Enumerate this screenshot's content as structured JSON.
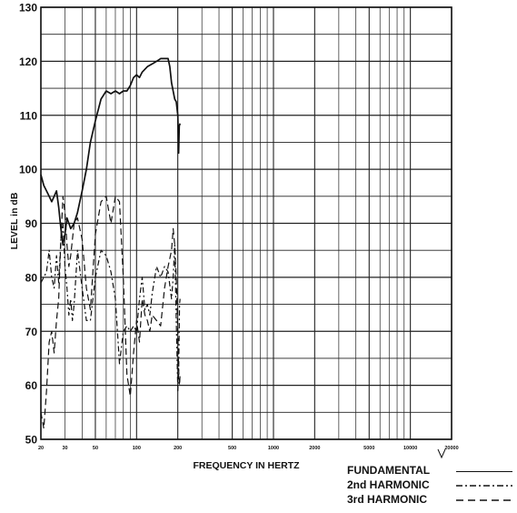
{
  "chart_data": {
    "type": "line",
    "xlabel": "FREQUENCY IN HERTZ",
    "ylabel": "LEVEL in dB",
    "xscale": "log",
    "xlim": [
      20,
      20000
    ],
    "ylim": [
      50,
      130
    ],
    "grid": true,
    "legend_position": "bottom-right",
    "y_ticks": [
      50,
      60,
      70,
      80,
      90,
      100,
      110,
      120,
      130
    ],
    "x_ticks": [
      {
        "value": 20,
        "label": "20"
      },
      {
        "value": 30,
        "label": "30"
      },
      {
        "value": 50,
        "label": "50"
      },
      {
        "value": 100,
        "label": "100"
      },
      {
        "value": 200,
        "label": "200"
      },
      {
        "value": 500,
        "label": "500"
      },
      {
        "value": 1000,
        "label": "1000"
      },
      {
        "value": 2000,
        "label": "2000"
      },
      {
        "value": 5000,
        "label": "5000"
      },
      {
        "value": 10000,
        "label": "10000"
      },
      {
        "value": 20000,
        "label": "20000"
      }
    ],
    "series": [
      {
        "name": "FUNDAMENTAL",
        "style": "solid",
        "points": [
          [
            20,
            99
          ],
          [
            21,
            97
          ],
          [
            22,
            96
          ],
          [
            23,
            95
          ],
          [
            24,
            94
          ],
          [
            25,
            95
          ],
          [
            26,
            96
          ],
          [
            27,
            93
          ],
          [
            28,
            89
          ],
          [
            29,
            86
          ],
          [
            30,
            88
          ],
          [
            31,
            91
          ],
          [
            32,
            90
          ],
          [
            33,
            89
          ],
          [
            35,
            90
          ],
          [
            37,
            92
          ],
          [
            40,
            96
          ],
          [
            43,
            100
          ],
          [
            46,
            105
          ],
          [
            50,
            109
          ],
          [
            55,
            113
          ],
          [
            60,
            114.5
          ],
          [
            65,
            114
          ],
          [
            70,
            114.5
          ],
          [
            75,
            114
          ],
          [
            80,
            114.5
          ],
          [
            85,
            114.5
          ],
          [
            90,
            115.5
          ],
          [
            95,
            117
          ],
          [
            100,
            117.5
          ],
          [
            105,
            117
          ],
          [
            110,
            118
          ],
          [
            120,
            119
          ],
          [
            130,
            119.5
          ],
          [
            140,
            120
          ],
          [
            150,
            120.5
          ],
          [
            160,
            120.5
          ],
          [
            170,
            120.5
          ],
          [
            175,
            119
          ],
          [
            180,
            116
          ],
          [
            190,
            113
          ],
          [
            195,
            112.5
          ],
          [
            200,
            110
          ],
          [
            203,
            103
          ],
          [
            205,
            108
          ],
          [
            208,
            108.5
          ]
        ]
      },
      {
        "name": "2nd HARMONIC",
        "style": "dash-dot",
        "points": [
          [
            20,
            79
          ],
          [
            21,
            80
          ],
          [
            22,
            81
          ],
          [
            23,
            85
          ],
          [
            24,
            80
          ],
          [
            25,
            78
          ],
          [
            26,
            84
          ],
          [
            27,
            79
          ],
          [
            28,
            87
          ],
          [
            29,
            90
          ],
          [
            30,
            82
          ],
          [
            31,
            78
          ],
          [
            32,
            73
          ],
          [
            33,
            76
          ],
          [
            34,
            72
          ],
          [
            35,
            75
          ],
          [
            37,
            85
          ],
          [
            40,
            78
          ],
          [
            43,
            72
          ],
          [
            46,
            72
          ],
          [
            50,
            80
          ],
          [
            55,
            85
          ],
          [
            60,
            84
          ],
          [
            65,
            81
          ],
          [
            70,
            76
          ],
          [
            75,
            64
          ],
          [
            80,
            70
          ],
          [
            85,
            71
          ],
          [
            90,
            70
          ],
          [
            95,
            71
          ],
          [
            100,
            70
          ],
          [
            105,
            76
          ],
          [
            110,
            80
          ],
          [
            115,
            74
          ],
          [
            120,
            75
          ],
          [
            125,
            73
          ],
          [
            130,
            77
          ],
          [
            140,
            82
          ],
          [
            150,
            80
          ],
          [
            160,
            82
          ],
          [
            170,
            81
          ],
          [
            180,
            76
          ],
          [
            185,
            80
          ],
          [
            190,
            86
          ],
          [
            195,
            72
          ],
          [
            200,
            59
          ],
          [
            203,
            62
          ],
          [
            206,
            75
          ],
          [
            208,
            76
          ]
        ]
      },
      {
        "name": "3rd HARMONIC",
        "style": "dashed",
        "points": [
          [
            20,
            55
          ],
          [
            21,
            52
          ],
          [
            22,
            59
          ],
          [
            23,
            68
          ],
          [
            24,
            70
          ],
          [
            25,
            66
          ],
          [
            26,
            72
          ],
          [
            27,
            76
          ],
          [
            28,
            87
          ],
          [
            29,
            95
          ],
          [
            30,
            92
          ],
          [
            31,
            86
          ],
          [
            32,
            82
          ],
          [
            33,
            84
          ],
          [
            35,
            90
          ],
          [
            37,
            91
          ],
          [
            40,
            87
          ],
          [
            43,
            78
          ],
          [
            46,
            74
          ],
          [
            50,
            88
          ],
          [
            55,
            94
          ],
          [
            60,
            95
          ],
          [
            65,
            90
          ],
          [
            70,
            95
          ],
          [
            75,
            94
          ],
          [
            80,
            80
          ],
          [
            85,
            62
          ],
          [
            90,
            58
          ],
          [
            95,
            66
          ],
          [
            100,
            72
          ],
          [
            105,
            68
          ],
          [
            110,
            76
          ],
          [
            115,
            73
          ],
          [
            120,
            72
          ],
          [
            125,
            70
          ],
          [
            130,
            73
          ],
          [
            140,
            72
          ],
          [
            150,
            71
          ],
          [
            160,
            78
          ],
          [
            170,
            82
          ],
          [
            180,
            85
          ],
          [
            185,
            89
          ],
          [
            190,
            86
          ],
          [
            195,
            80
          ],
          [
            200,
            70
          ],
          [
            203,
            63
          ],
          [
            206,
            60
          ],
          [
            208,
            62
          ]
        ]
      }
    ]
  }
}
